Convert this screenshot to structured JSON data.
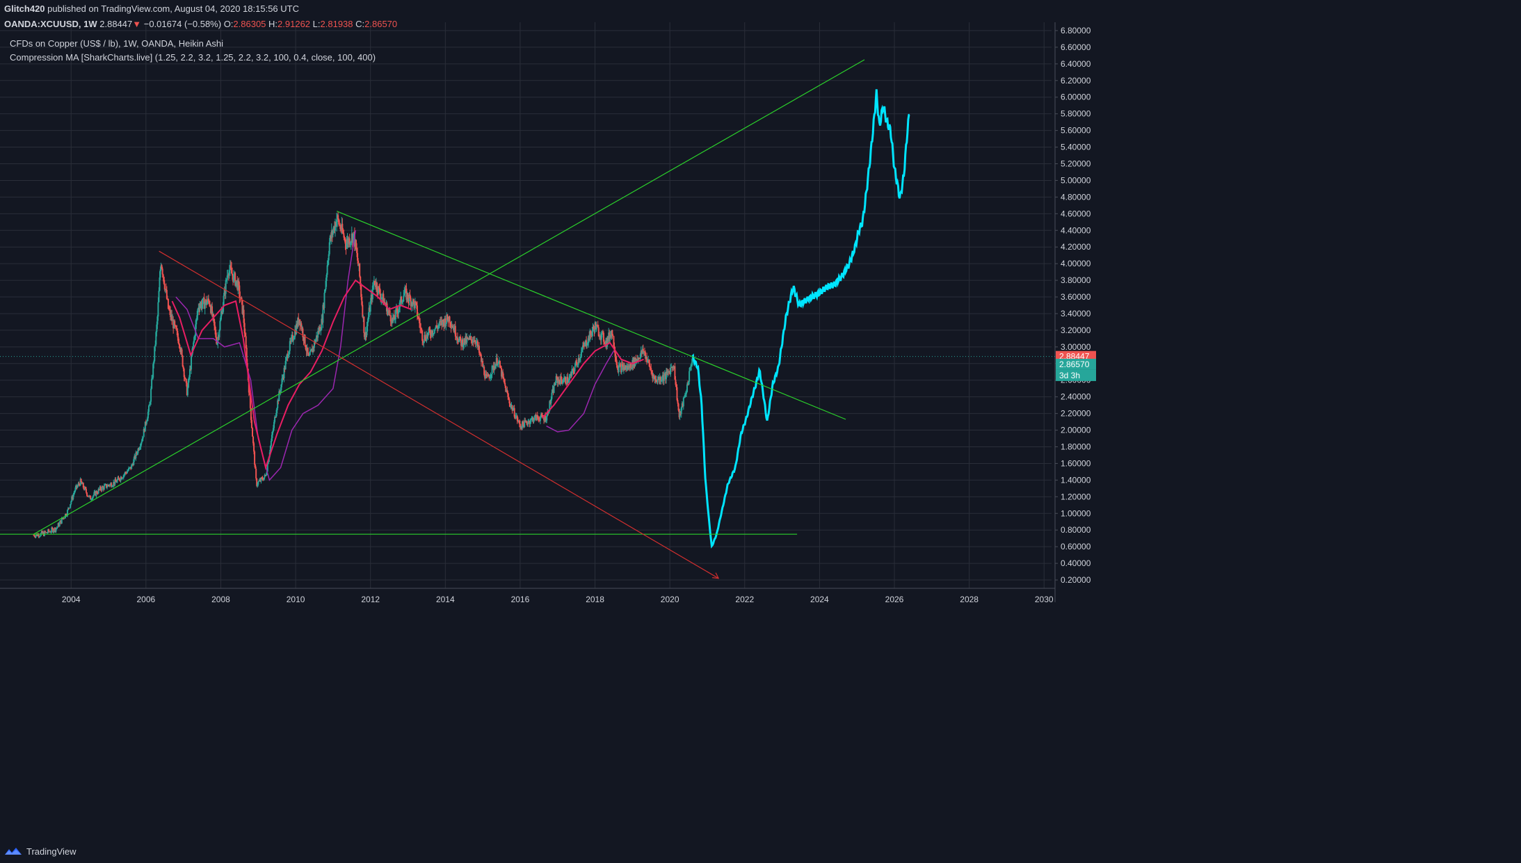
{
  "header": {
    "publisher": "Glitch420",
    "published_text": "published on TradingView.com, August 04, 2020 18:15:56 UTC",
    "symbol": "OANDA:XCUUSD, 1W",
    "last": "2.88447",
    "arrow": "▼",
    "change": "−0.01674 (−0.58%)",
    "o_label": "O:",
    "o_val": "2.86305",
    "h_label": "H:",
    "h_val": "2.91262",
    "l_label": "L:",
    "l_val": "2.81938",
    "c_label": "C:",
    "c_val": "2.86570"
  },
  "legend": {
    "line1": "CFDs on Copper (US$ / lb), 1W, OANDA, Heikin Ashi",
    "line2": "Compression MA [SharkCharts.live] (1.25, 2.2, 3.2, 1.25, 2.2, 3.2, 100, 0.4, close, 100, 400)"
  },
  "footer": {
    "brand": "TradingView"
  },
  "colors": {
    "background": "#131722",
    "grid": "#2a2e39",
    "up": "#26a69a",
    "down": "#ef5350",
    "projection": "#00e5ff",
    "trend_green": "#2bd12b",
    "trend_red": "#d32f2f",
    "ma_pink": "#e91e63",
    "ma_purple": "#9c27b0"
  },
  "chart_data": {
    "type": "candlestick",
    "x_ticks": [
      "2004",
      "2006",
      "2008",
      "2010",
      "2012",
      "2014",
      "2016",
      "2018",
      "2020",
      "2022",
      "2024",
      "2026",
      "2028",
      "2030"
    ],
    "y_ticks": [
      "0.20000",
      "0.40000",
      "0.60000",
      "0.80000",
      "1.00000",
      "1.20000",
      "1.40000",
      "1.60000",
      "1.80000",
      "2.00000",
      "2.20000",
      "2.40000",
      "2.60000",
      "2.80000",
      "3.00000",
      "3.20000",
      "3.40000",
      "3.60000",
      "3.80000",
      "4.00000",
      "4.20000",
      "4.40000",
      "4.60000",
      "4.80000",
      "5.00000",
      "5.20000",
      "5.40000",
      "5.60000",
      "5.80000",
      "6.00000",
      "6.20000",
      "6.40000",
      "6.60000",
      "6.80000"
    ],
    "ylim": [
      0.1,
      6.9
    ],
    "xlim": [
      2002.1,
      2030.2
    ],
    "price_series": [
      {
        "x": 2003.0,
        "y": 0.74
      },
      {
        "x": 2003.3,
        "y": 0.76
      },
      {
        "x": 2003.6,
        "y": 0.82
      },
      {
        "x": 2003.9,
        "y": 1.02
      },
      {
        "x": 2004.1,
        "y": 1.28
      },
      {
        "x": 2004.25,
        "y": 1.38
      },
      {
        "x": 2004.5,
        "y": 1.18
      },
      {
        "x": 2004.8,
        "y": 1.3
      },
      {
        "x": 2005.2,
        "y": 1.38
      },
      {
        "x": 2005.6,
        "y": 1.55
      },
      {
        "x": 2005.9,
        "y": 1.9
      },
      {
        "x": 2006.1,
        "y": 2.3
      },
      {
        "x": 2006.3,
        "y": 3.3
      },
      {
        "x": 2006.4,
        "y": 4.05
      },
      {
        "x": 2006.6,
        "y": 3.45
      },
      {
        "x": 2006.9,
        "y": 3.05
      },
      {
        "x": 2007.1,
        "y": 2.45
      },
      {
        "x": 2007.4,
        "y": 3.5
      },
      {
        "x": 2007.7,
        "y": 3.55
      },
      {
        "x": 2007.9,
        "y": 3.05
      },
      {
        "x": 2008.2,
        "y": 3.95
      },
      {
        "x": 2008.45,
        "y": 3.75
      },
      {
        "x": 2008.6,
        "y": 3.4
      },
      {
        "x": 2008.8,
        "y": 2.2
      },
      {
        "x": 2008.95,
        "y": 1.35
      },
      {
        "x": 2009.2,
        "y": 1.45
      },
      {
        "x": 2009.5,
        "y": 2.3
      },
      {
        "x": 2009.8,
        "y": 2.95
      },
      {
        "x": 2010.1,
        "y": 3.35
      },
      {
        "x": 2010.35,
        "y": 2.85
      },
      {
        "x": 2010.7,
        "y": 3.3
      },
      {
        "x": 2010.9,
        "y": 4.25
      },
      {
        "x": 2011.1,
        "y": 4.55
      },
      {
        "x": 2011.35,
        "y": 4.25
      },
      {
        "x": 2011.55,
        "y": 4.35
      },
      {
        "x": 2011.7,
        "y": 3.9
      },
      {
        "x": 2011.85,
        "y": 3.1
      },
      {
        "x": 2012.1,
        "y": 3.8
      },
      {
        "x": 2012.4,
        "y": 3.5
      },
      {
        "x": 2012.6,
        "y": 3.3
      },
      {
        "x": 2012.9,
        "y": 3.65
      },
      {
        "x": 2013.2,
        "y": 3.5
      },
      {
        "x": 2013.4,
        "y": 3.1
      },
      {
        "x": 2013.8,
        "y": 3.25
      },
      {
        "x": 2014.1,
        "y": 3.35
      },
      {
        "x": 2014.4,
        "y": 3.05
      },
      {
        "x": 2014.8,
        "y": 3.1
      },
      {
        "x": 2015.1,
        "y": 2.6
      },
      {
        "x": 2015.4,
        "y": 2.85
      },
      {
        "x": 2015.7,
        "y": 2.35
      },
      {
        "x": 2016.0,
        "y": 2.05
      },
      {
        "x": 2016.4,
        "y": 2.15
      },
      {
        "x": 2016.7,
        "y": 2.15
      },
      {
        "x": 2016.95,
        "y": 2.6
      },
      {
        "x": 2017.3,
        "y": 2.6
      },
      {
        "x": 2017.7,
        "y": 3.0
      },
      {
        "x": 2018.0,
        "y": 3.25
      },
      {
        "x": 2018.3,
        "y": 3.05
      },
      {
        "x": 2018.45,
        "y": 3.2
      },
      {
        "x": 2018.6,
        "y": 2.75
      },
      {
        "x": 2018.9,
        "y": 2.75
      },
      {
        "x": 2019.3,
        "y": 2.95
      },
      {
        "x": 2019.6,
        "y": 2.6
      },
      {
        "x": 2019.9,
        "y": 2.65
      },
      {
        "x": 2020.1,
        "y": 2.8
      },
      {
        "x": 2020.25,
        "y": 2.15
      },
      {
        "x": 2020.45,
        "y": 2.5
      },
      {
        "x": 2020.6,
        "y": 2.88
      }
    ],
    "projection_series": [
      {
        "x": 2020.6,
        "y": 2.88
      },
      {
        "x": 2020.75,
        "y": 2.75
      },
      {
        "x": 2020.85,
        "y": 2.3
      },
      {
        "x": 2020.95,
        "y": 1.4
      },
      {
        "x": 2021.05,
        "y": 0.9
      },
      {
        "x": 2021.12,
        "y": 0.6
      },
      {
        "x": 2021.25,
        "y": 0.75
      },
      {
        "x": 2021.4,
        "y": 1.05
      },
      {
        "x": 2021.55,
        "y": 1.35
      },
      {
        "x": 2021.75,
        "y": 1.55
      },
      {
        "x": 2021.9,
        "y": 1.95
      },
      {
        "x": 2022.05,
        "y": 2.15
      },
      {
        "x": 2022.2,
        "y": 2.4
      },
      {
        "x": 2022.3,
        "y": 2.55
      },
      {
        "x": 2022.4,
        "y": 2.72
      },
      {
        "x": 2022.5,
        "y": 2.42
      },
      {
        "x": 2022.6,
        "y": 2.1
      },
      {
        "x": 2022.75,
        "y": 2.55
      },
      {
        "x": 2022.9,
        "y": 2.75
      },
      {
        "x": 2023.0,
        "y": 3.05
      },
      {
        "x": 2023.1,
        "y": 3.35
      },
      {
        "x": 2023.2,
        "y": 3.55
      },
      {
        "x": 2023.3,
        "y": 3.72
      },
      {
        "x": 2023.45,
        "y": 3.5
      },
      {
        "x": 2023.6,
        "y": 3.55
      },
      {
        "x": 2023.8,
        "y": 3.6
      },
      {
        "x": 2024.0,
        "y": 3.65
      },
      {
        "x": 2024.2,
        "y": 3.72
      },
      {
        "x": 2024.4,
        "y": 3.75
      },
      {
        "x": 2024.6,
        "y": 3.85
      },
      {
        "x": 2024.8,
        "y": 4.0
      },
      {
        "x": 2024.95,
        "y": 4.2
      },
      {
        "x": 2025.05,
        "y": 4.4
      },
      {
        "x": 2025.15,
        "y": 4.5
      },
      {
        "x": 2025.25,
        "y": 4.85
      },
      {
        "x": 2025.35,
        "y": 5.25
      },
      {
        "x": 2025.45,
        "y": 5.7
      },
      {
        "x": 2025.52,
        "y": 6.05
      },
      {
        "x": 2025.6,
        "y": 5.65
      },
      {
        "x": 2025.7,
        "y": 5.9
      },
      {
        "x": 2025.8,
        "y": 5.7
      },
      {
        "x": 2025.9,
        "y": 5.6
      },
      {
        "x": 2026.0,
        "y": 5.15
      },
      {
        "x": 2026.1,
        "y": 4.9
      },
      {
        "x": 2026.15,
        "y": 4.78
      },
      {
        "x": 2026.25,
        "y": 5.05
      },
      {
        "x": 2026.35,
        "y": 5.6
      },
      {
        "x": 2026.42,
        "y": 5.9
      }
    ],
    "ma_pink": [
      {
        "x": 2006.7,
        "y": 3.55
      },
      {
        "x": 2006.9,
        "y": 3.35
      },
      {
        "x": 2007.2,
        "y": 2.9
      },
      {
        "x": 2007.5,
        "y": 3.2
      },
      {
        "x": 2007.8,
        "y": 3.35
      },
      {
        "x": 2008.1,
        "y": 3.5
      },
      {
        "x": 2008.4,
        "y": 3.55
      },
      {
        "x": 2008.6,
        "y": 3.1
      },
      {
        "x": 2008.9,
        "y": 2.1
      },
      {
        "x": 2009.2,
        "y": 1.55
      },
      {
        "x": 2009.5,
        "y": 1.95
      },
      {
        "x": 2009.8,
        "y": 2.3
      },
      {
        "x": 2010.1,
        "y": 2.55
      },
      {
        "x": 2010.4,
        "y": 2.7
      },
      {
        "x": 2010.7,
        "y": 2.95
      },
      {
        "x": 2011.0,
        "y": 3.3
      },
      {
        "x": 2011.3,
        "y": 3.6
      },
      {
        "x": 2011.6,
        "y": 3.8
      },
      {
        "x": 2011.9,
        "y": 3.7
      },
      {
        "x": 2012.2,
        "y": 3.6
      },
      {
        "x": 2012.5,
        "y": 3.45
      },
      {
        "x": 2012.8,
        "y": 3.5
      },
      {
        "x": 2013.1,
        "y": 3.45
      }
    ],
    "ma_pink_2": [
      {
        "x": 2016.6,
        "y": 2.15
      },
      {
        "x": 2016.9,
        "y": 2.3
      },
      {
        "x": 2017.3,
        "y": 2.55
      },
      {
        "x": 2017.7,
        "y": 2.8
      },
      {
        "x": 2018.0,
        "y": 2.95
      },
      {
        "x": 2018.4,
        "y": 3.05
      },
      {
        "x": 2018.7,
        "y": 2.85
      },
      {
        "x": 2019.0,
        "y": 2.8
      },
      {
        "x": 2019.3,
        "y": 2.85
      }
    ],
    "ma_purple": [
      {
        "x": 2006.8,
        "y": 3.6
      },
      {
        "x": 2007.1,
        "y": 3.45
      },
      {
        "x": 2007.4,
        "y": 3.1
      },
      {
        "x": 2007.8,
        "y": 3.1
      },
      {
        "x": 2008.1,
        "y": 3.0
      },
      {
        "x": 2008.5,
        "y": 3.05
      },
      {
        "x": 2008.8,
        "y": 2.6
      },
      {
        "x": 2009.0,
        "y": 1.9
      },
      {
        "x": 2009.3,
        "y": 1.4
      },
      {
        "x": 2009.6,
        "y": 1.55
      },
      {
        "x": 2009.9,
        "y": 2.0
      },
      {
        "x": 2010.2,
        "y": 2.2
      },
      {
        "x": 2010.6,
        "y": 2.3
      },
      {
        "x": 2011.0,
        "y": 2.5
      },
      {
        "x": 2011.2,
        "y": 3.0
      },
      {
        "x": 2011.4,
        "y": 3.8
      },
      {
        "x": 2011.6,
        "y": 4.4
      }
    ],
    "ma_purple_2": [
      {
        "x": 2016.7,
        "y": 2.05
      },
      {
        "x": 2017.0,
        "y": 1.98
      },
      {
        "x": 2017.3,
        "y": 2.0
      },
      {
        "x": 2017.7,
        "y": 2.2
      },
      {
        "x": 2018.0,
        "y": 2.55
      },
      {
        "x": 2018.3,
        "y": 2.8
      },
      {
        "x": 2018.5,
        "y": 2.95
      }
    ],
    "trend_lines": [
      {
        "color": "green",
        "from": [
          2003.0,
          0.75
        ],
        "to": [
          2025.2,
          6.45
        ]
      },
      {
        "color": "green",
        "from": [
          2011.1,
          4.63
        ],
        "to": [
          2024.7,
          2.13
        ]
      },
      {
        "color": "green",
        "from": [
          2002.1,
          0.75
        ],
        "to": [
          2023.4,
          0.75
        ]
      },
      {
        "color": "red",
        "from": [
          2006.35,
          4.15
        ],
        "to": [
          2021.3,
          0.22
        ]
      }
    ],
    "current_price": {
      "label": "2.88447",
      "value": 2.88447
    },
    "close_price": {
      "label": "2.86570",
      "value": 2.8657
    },
    "countdown": {
      "label": "3d 3h"
    }
  }
}
